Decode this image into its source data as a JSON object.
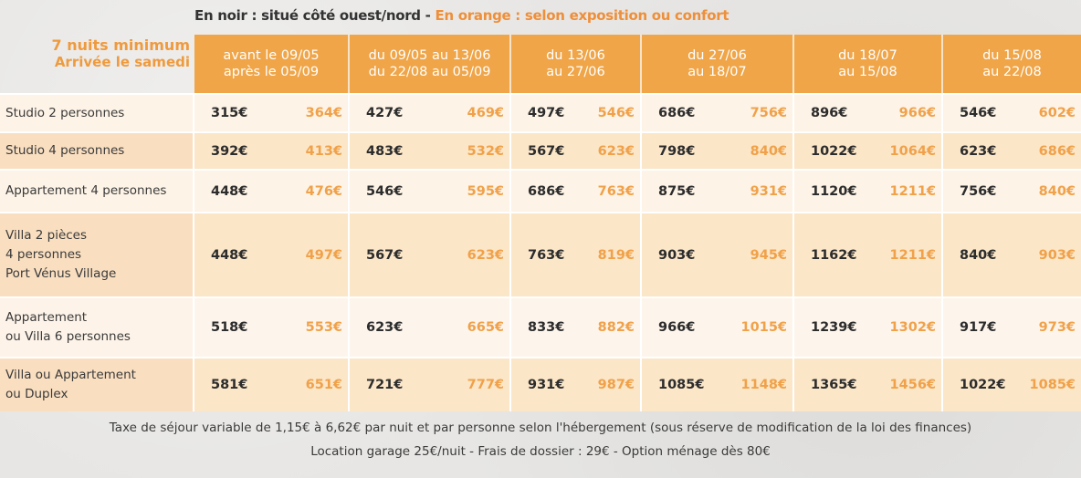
{
  "legend": {
    "black_text": "En noir : situé côté ouest/nord - ",
    "orange_text": "En orange : selon exposition ou confort",
    "black_color": "#333333",
    "orange_color": "#ee8f3a"
  },
  "side_title": {
    "line1": "7 nuits minimum",
    "line2": "Arrivée le samedi"
  },
  "columns": [
    {
      "line1": "avant le 09/05",
      "line2": "après le 05/09"
    },
    {
      "line1": "du 09/05 au 13/06",
      "line2": "du 22/08 au 05/09"
    },
    {
      "line1": "du 13/06",
      "line2": "au 27/06"
    },
    {
      "line1": "du 27/06",
      "line2": "au 18/07"
    },
    {
      "line1": "du 18/07",
      "line2": "au 15/08"
    },
    {
      "line1": "du 15/08",
      "line2": "au 22/08"
    }
  ],
  "rows": [
    {
      "label": [
        "Studio 2 personnes"
      ],
      "prices": [
        [
          "315€",
          "364€"
        ],
        [
          "427€",
          "469€"
        ],
        [
          "497€",
          "546€"
        ],
        [
          "686€",
          "756€"
        ],
        [
          "896€",
          "966€"
        ],
        [
          "546€",
          "602€"
        ]
      ]
    },
    {
      "label": [
        "Studio 4 personnes"
      ],
      "prices": [
        [
          "392€",
          "413€"
        ],
        [
          "483€",
          "532€"
        ],
        [
          "567€",
          "623€"
        ],
        [
          "798€",
          "840€"
        ],
        [
          "1022€",
          "1064€"
        ],
        [
          "623€",
          "686€"
        ]
      ]
    },
    {
      "label": [
        "Appartement 4 personnes"
      ],
      "prices": [
        [
          "448€",
          "476€"
        ],
        [
          "546€",
          "595€"
        ],
        [
          "686€",
          "763€"
        ],
        [
          "875€",
          "931€"
        ],
        [
          "1120€",
          "1211€"
        ],
        [
          "756€",
          "840€"
        ]
      ]
    },
    {
      "label": [
        "Villa 2 pièces",
        "4 personnes",
        "Port Vénus Village"
      ],
      "prices": [
        [
          "448€",
          "497€"
        ],
        [
          "567€",
          "623€"
        ],
        [
          "763€",
          "819€"
        ],
        [
          "903€",
          "945€"
        ],
        [
          "1162€",
          "1211€"
        ],
        [
          "840€",
          "903€"
        ]
      ]
    },
    {
      "label": [
        "Appartement",
        "ou Villa 6 personnes"
      ],
      "prices": [
        [
          "518€",
          "553€"
        ],
        [
          "623€",
          "665€"
        ],
        [
          "833€",
          "882€"
        ],
        [
          "966€",
          "1015€"
        ],
        [
          "1239€",
          "1302€"
        ],
        [
          "917€",
          "973€"
        ]
      ]
    },
    {
      "label": [
        "Villa ou Appartement",
        "ou Duplex"
      ],
      "prices": [
        [
          "581€",
          "651€"
        ],
        [
          "721€",
          "777€"
        ],
        [
          "931€",
          "987€"
        ],
        [
          "1085€",
          "1148€"
        ],
        [
          "1365€",
          "1456€"
        ],
        [
          "1022€",
          "1085€"
        ]
      ]
    }
  ],
  "footer": {
    "line1": "Taxe de séjour variable de 1,15€ à 6,62€ par nuit et par personne selon l'hébergement (sous réserve de modification de la loi des finances)",
    "line2": "Location garage 25€/nuit - Frais de dossier : 29€ - Option ménage dès 80€"
  }
}
